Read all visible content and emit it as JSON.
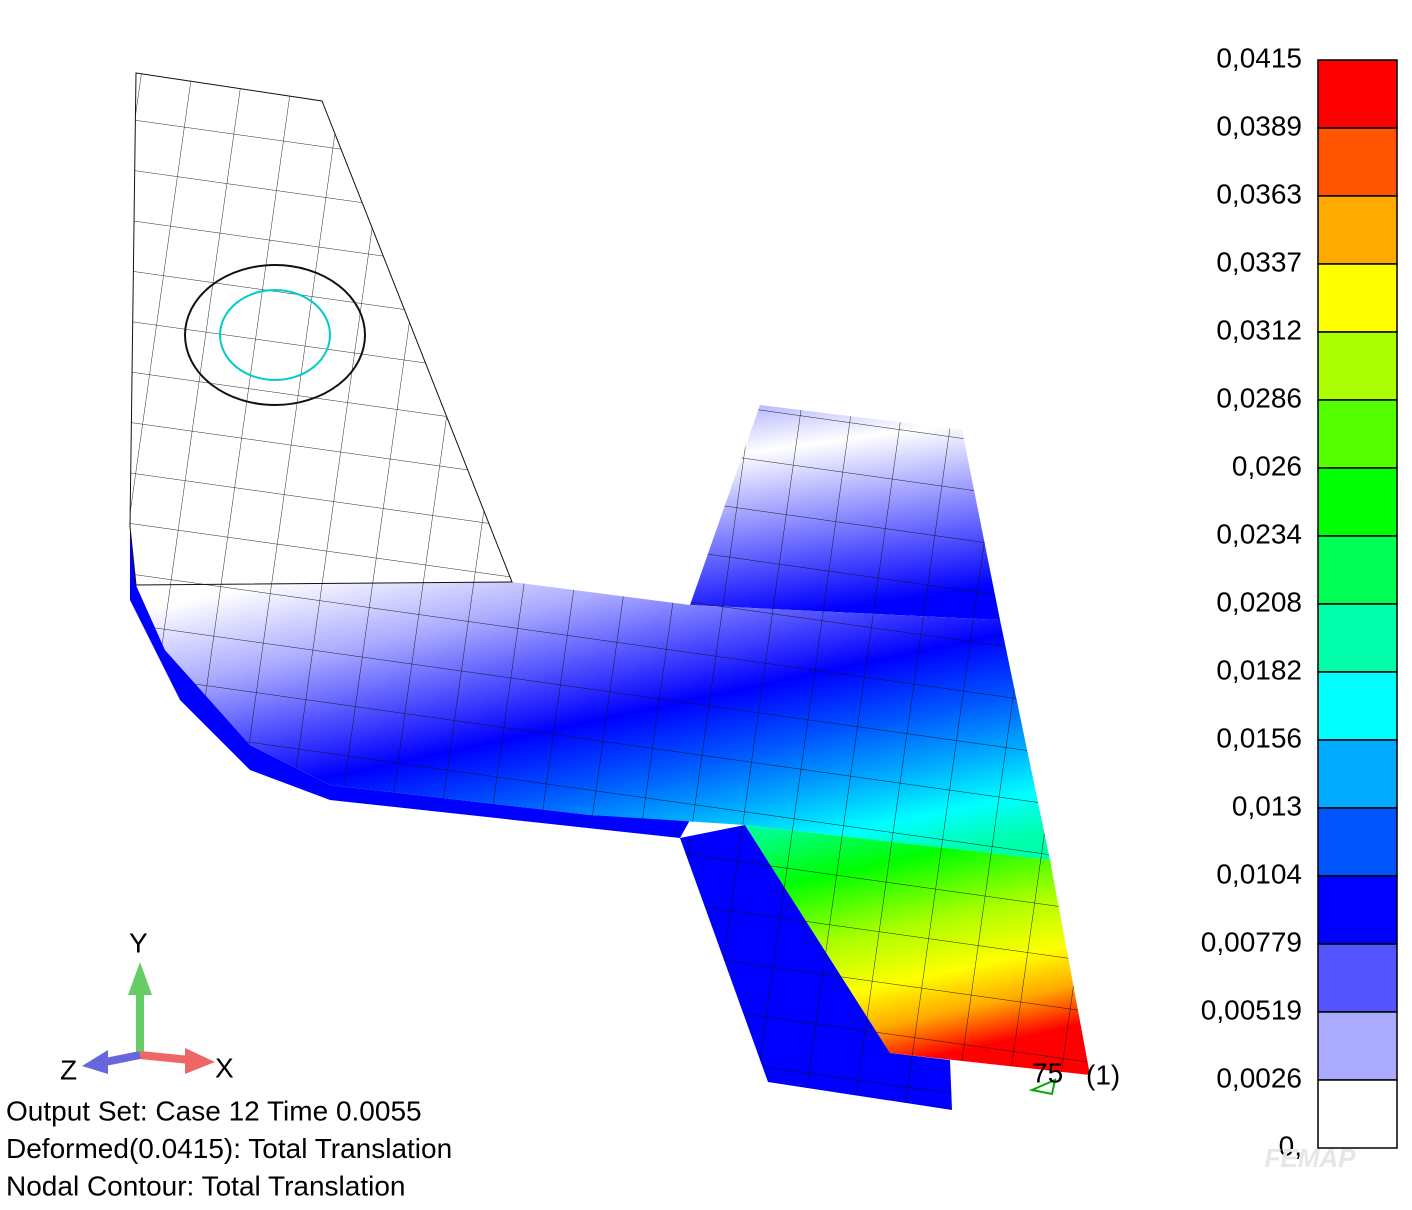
{
  "legend": {
    "labels": [
      "0,0415",
      "0,0389",
      "0,0363",
      "0,0337",
      "0,0312",
      "0,0286",
      "0,026",
      "0,0234",
      "0,0208",
      "0,0182",
      "0,0156",
      "0,013",
      "0,0104",
      "0,00779",
      "0,00519",
      "0,0026",
      "0,"
    ],
    "colors": [
      "#ff0000",
      "#ff5500",
      "#ffaa00",
      "#ffff00",
      "#aaff00",
      "#55ff00",
      "#00ff00",
      "#00ff55",
      "#00ffaa",
      "#00ffff",
      "#00aaff",
      "#0055ff",
      "#0000ff",
      "#5555ff",
      "#aaaaff",
      "#ffffff"
    ]
  },
  "info": {
    "lines": [
      "Output Set: Case 12 Time 0.0055",
      "Deformed(0.0415): Total Translation",
      "Nodal Contour: Total Translation"
    ]
  },
  "axes": {
    "y": "Y",
    "x": "X",
    "z": "Z"
  },
  "node": {
    "id": "75",
    "case": "(1)"
  },
  "watermark": "FEMAP"
}
